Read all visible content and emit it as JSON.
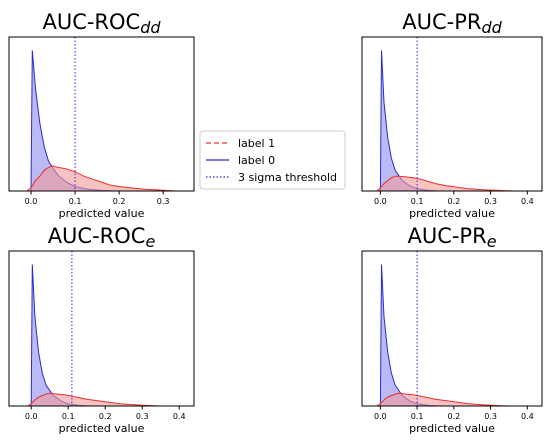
{
  "figure": {
    "legend": {
      "entries": [
        {
          "label": "label 1",
          "color": "#e8302a",
          "style": "dashed"
        },
        {
          "label": "label 0",
          "color": "#2b2bd0",
          "style": "solid"
        },
        {
          "label": "3 sigma threshold",
          "color": "#2b2bd0",
          "style": "dotted"
        }
      ]
    }
  },
  "chart_data": [
    {
      "type": "area",
      "title_main": "AUC-ROC",
      "title_sub": "dd",
      "xlabel": "predicted value",
      "ylabel": "",
      "xlim": [
        -0.05,
        0.37
      ],
      "x_ticks": [
        "0.0",
        "0.1",
        "0.2",
        "0.3"
      ],
      "y_ticks": [],
      "threshold": 0.1,
      "legend_position": "outside-right",
      "series": [
        {
          "name": "label 0",
          "color": "#2b2bd0",
          "fill": "#8c8cf0",
          "points": [
            [
              0.0,
              0.0
            ],
            [
              0.003,
              0.95
            ],
            [
              0.01,
              0.7
            ],
            [
              0.02,
              0.46
            ],
            [
              0.03,
              0.3
            ],
            [
              0.04,
              0.2
            ],
            [
              0.06,
              0.11
            ],
            [
              0.08,
              0.06
            ],
            [
              0.1,
              0.03
            ],
            [
              0.13,
              0.012
            ],
            [
              0.16,
              0.004
            ],
            [
              0.2,
              0.0
            ]
          ]
        },
        {
          "name": "label 1",
          "color": "#e8302a",
          "fill": "#f29a9a",
          "points": [
            [
              -0.01,
              0.0
            ],
            [
              0.0,
              0.02
            ],
            [
              0.01,
              0.07
            ],
            [
              0.02,
              0.1
            ],
            [
              0.03,
              0.14
            ],
            [
              0.04,
              0.16
            ],
            [
              0.05,
              0.17
            ],
            [
              0.06,
              0.16
            ],
            [
              0.08,
              0.15
            ],
            [
              0.1,
              0.13
            ],
            [
              0.12,
              0.1
            ],
            [
              0.14,
              0.08
            ],
            [
              0.16,
              0.06
            ],
            [
              0.18,
              0.04
            ],
            [
              0.2,
              0.03
            ],
            [
              0.23,
              0.02
            ],
            [
              0.26,
              0.012
            ],
            [
              0.3,
              0.005
            ],
            [
              0.33,
              0.0
            ]
          ]
        }
      ]
    },
    {
      "type": "area",
      "title_main": "AUC-PR",
      "title_sub": "dd",
      "xlabel": "predicted value",
      "ylabel": "",
      "xlim": [
        -0.05,
        0.44
      ],
      "x_ticks": [
        "0.0",
        "0.1",
        "0.2",
        "0.3",
        "0.4"
      ],
      "y_ticks": [],
      "threshold": 0.1,
      "series": [
        {
          "name": "label 0",
          "color": "#2b2bd0",
          "fill": "#8c8cf0",
          "points": [
            [
              0.0,
              0.0
            ],
            [
              0.003,
              0.95
            ],
            [
              0.01,
              0.6
            ],
            [
              0.02,
              0.36
            ],
            [
              0.03,
              0.22
            ],
            [
              0.04,
              0.14
            ],
            [
              0.06,
              0.07
            ],
            [
              0.08,
              0.035
            ],
            [
              0.1,
              0.015
            ],
            [
              0.13,
              0.004
            ],
            [
              0.16,
              0.0
            ]
          ]
        },
        {
          "name": "label 1",
          "color": "#e8302a",
          "fill": "#f29a9a",
          "points": [
            [
              -0.01,
              0.0
            ],
            [
              0.0,
              0.02
            ],
            [
              0.01,
              0.05
            ],
            [
              0.02,
              0.07
            ],
            [
              0.03,
              0.09
            ],
            [
              0.04,
              0.1
            ],
            [
              0.05,
              0.1
            ],
            [
              0.07,
              0.095
            ],
            [
              0.09,
              0.09
            ],
            [
              0.11,
              0.08
            ],
            [
              0.13,
              0.065
            ],
            [
              0.15,
              0.05
            ],
            [
              0.18,
              0.035
            ],
            [
              0.21,
              0.025
            ],
            [
              0.24,
              0.015
            ],
            [
              0.28,
              0.008
            ],
            [
              0.32,
              0.004
            ],
            [
              0.36,
              0.0
            ]
          ]
        }
      ]
    },
    {
      "type": "area",
      "title_main": "AUC-ROC",
      "title_sub": "e",
      "xlabel": "predicted value",
      "ylabel": "",
      "xlim": [
        -0.06,
        0.44
      ],
      "x_ticks": [
        "0.0",
        "0.1",
        "0.2",
        "0.3",
        "0.4"
      ],
      "y_ticks": [],
      "threshold": 0.11,
      "series": [
        {
          "name": "label 0",
          "color": "#2b2bd0",
          "fill": "#8c8cf0",
          "points": [
            [
              0.0,
              0.0
            ],
            [
              0.003,
              0.95
            ],
            [
              0.01,
              0.6
            ],
            [
              0.02,
              0.36
            ],
            [
              0.03,
              0.22
            ],
            [
              0.04,
              0.14
            ],
            [
              0.06,
              0.07
            ],
            [
              0.08,
              0.035
            ],
            [
              0.1,
              0.015
            ],
            [
              0.13,
              0.004
            ],
            [
              0.16,
              0.0
            ]
          ]
        },
        {
          "name": "label 1",
          "color": "#e8302a",
          "fill": "#f29a9a",
          "points": [
            [
              -0.01,
              0.0
            ],
            [
              0.0,
              0.015
            ],
            [
              0.01,
              0.04
            ],
            [
              0.02,
              0.06
            ],
            [
              0.03,
              0.07
            ],
            [
              0.04,
              0.08
            ],
            [
              0.05,
              0.085
            ],
            [
              0.07,
              0.08
            ],
            [
              0.09,
              0.075
            ],
            [
              0.11,
              0.065
            ],
            [
              0.13,
              0.055
            ],
            [
              0.15,
              0.045
            ],
            [
              0.18,
              0.035
            ],
            [
              0.21,
              0.025
            ],
            [
              0.24,
              0.015
            ],
            [
              0.28,
              0.008
            ],
            [
              0.32,
              0.003
            ],
            [
              0.35,
              0.0
            ]
          ]
        }
      ]
    },
    {
      "type": "area",
      "title_main": "AUC-PR",
      "title_sub": "e",
      "xlabel": "predicted value",
      "ylabel": "",
      "xlim": [
        -0.05,
        0.44
      ],
      "x_ticks": [
        "0.0",
        "0.1",
        "0.2",
        "0.3",
        "0.4"
      ],
      "y_ticks": [],
      "threshold": 0.1,
      "series": [
        {
          "name": "label 0",
          "color": "#2b2bd0",
          "fill": "#8c8cf0",
          "points": [
            [
              0.0,
              0.0
            ],
            [
              0.003,
              0.95
            ],
            [
              0.01,
              0.6
            ],
            [
              0.02,
              0.36
            ],
            [
              0.03,
              0.22
            ],
            [
              0.04,
              0.14
            ],
            [
              0.06,
              0.07
            ],
            [
              0.08,
              0.035
            ],
            [
              0.1,
              0.015
            ],
            [
              0.13,
              0.004
            ],
            [
              0.16,
              0.0
            ]
          ]
        },
        {
          "name": "label 1",
          "color": "#e8302a",
          "fill": "#f29a9a",
          "points": [
            [
              -0.01,
              0.0
            ],
            [
              0.0,
              0.015
            ],
            [
              0.01,
              0.04
            ],
            [
              0.02,
              0.06
            ],
            [
              0.03,
              0.07
            ],
            [
              0.04,
              0.08
            ],
            [
              0.05,
              0.085
            ],
            [
              0.07,
              0.08
            ],
            [
              0.09,
              0.075
            ],
            [
              0.11,
              0.065
            ],
            [
              0.13,
              0.055
            ],
            [
              0.15,
              0.045
            ],
            [
              0.18,
              0.035
            ],
            [
              0.21,
              0.025
            ],
            [
              0.24,
              0.015
            ],
            [
              0.28,
              0.008
            ],
            [
              0.32,
              0.003
            ],
            [
              0.35,
              0.0
            ]
          ]
        }
      ]
    }
  ]
}
